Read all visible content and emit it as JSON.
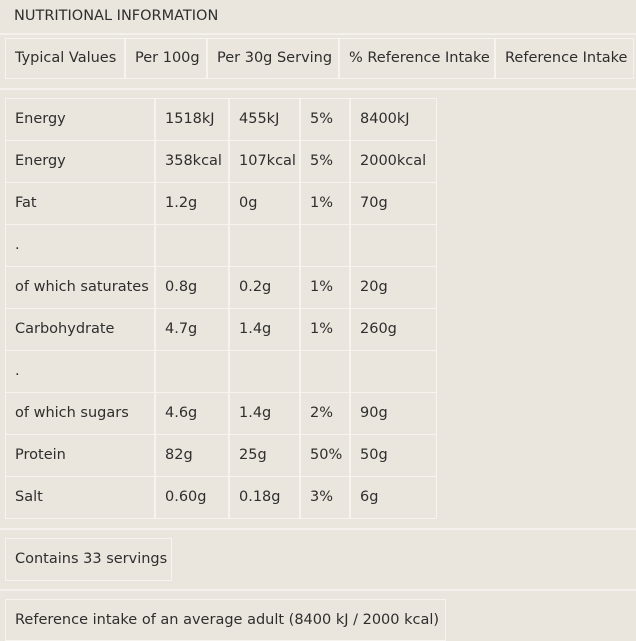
{
  "title": "NUTRITIONAL INFORMATION",
  "header": [
    "Typical Values",
    "Per 100g",
    "Per 30g Serving",
    "% Reference Intake",
    "Reference Intake"
  ],
  "rows": [
    [
      "Energy",
      "1518kJ",
      "455kJ",
      "5%",
      "8400kJ"
    ],
    [
      "Energy",
      "358kcal",
      "107kcal",
      "5%",
      "2000kcal"
    ],
    [
      "Fat",
      "1.2g",
      "0g",
      "1%",
      "70g"
    ],
    [
      "."
    ],
    [
      "of which saturates",
      "0.8g",
      "0.2g",
      "1%",
      "20g"
    ],
    [
      "Carbohydrate",
      "4.7g",
      "1.4g",
      "1%",
      "260g"
    ],
    [
      "."
    ],
    [
      "of which sugars",
      "4.6g",
      "1.4g",
      "2%",
      "90g"
    ],
    [
      "Protein",
      "82g",
      "25g",
      "50%",
      "50g"
    ],
    [
      "Salt",
      "0.60g",
      "0.18g",
      "3%",
      "6g"
    ]
  ],
  "servings": "Contains 33 servings",
  "reference_note": "Reference intake of an average adult (8400 kJ / 2000 kcal)"
}
